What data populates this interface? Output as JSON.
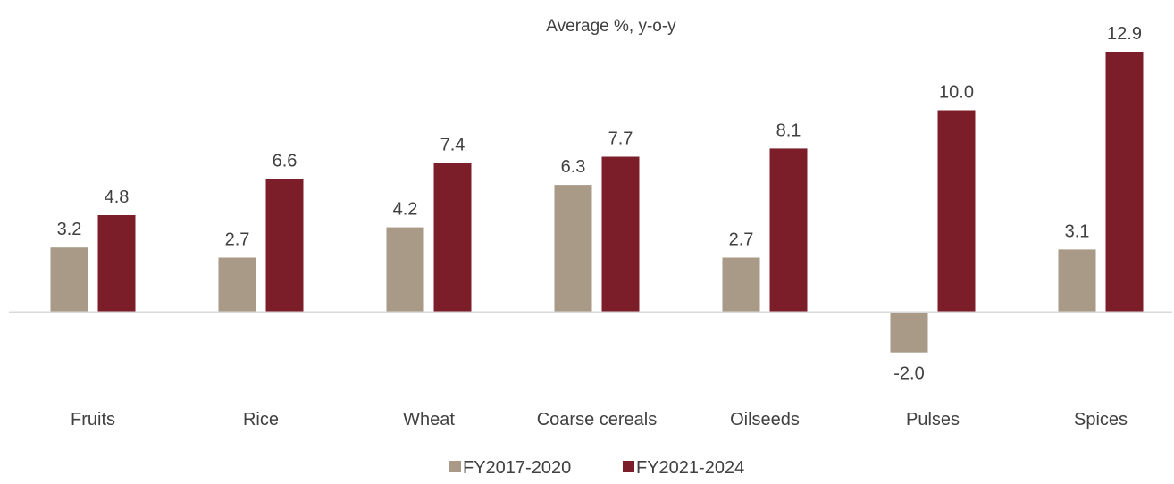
{
  "chart_data": {
    "type": "bar",
    "title": "",
    "subtitle": "Average %, y-o-y",
    "xlabel": "",
    "ylabel": "",
    "categories": [
      "Fruits",
      "Rice",
      "Wheat",
      "Coarse cereals",
      "Oilseeds",
      "Pulses",
      "Spices"
    ],
    "series": [
      {
        "name": "FY2017-2020",
        "color": "#a89a87",
        "values": [
          3.2,
          2.7,
          4.2,
          6.3,
          2.7,
          -2.0,
          3.1
        ]
      },
      {
        "name": "FY2021-2024",
        "color": "#7b1e2a",
        "values": [
          4.8,
          6.6,
          7.4,
          7.7,
          8.1,
          10.0,
          12.9
        ]
      }
    ],
    "data_labels": true,
    "value_format_decimals": 1,
    "ylim": [
      -2.0,
      12.9
    ],
    "grid": false,
    "legend": "bottom-center",
    "baseline_color": "#d9d9d9"
  }
}
